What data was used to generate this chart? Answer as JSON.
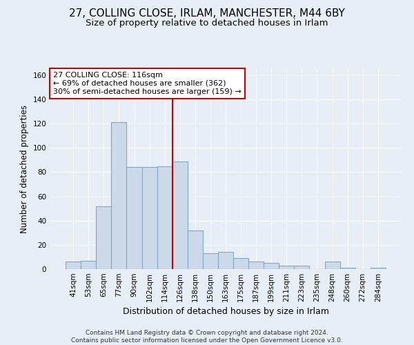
{
  "title": "27, COLLING CLOSE, IRLAM, MANCHESTER, M44 6BY",
  "subtitle": "Size of property relative to detached houses in Irlam",
  "xlabel": "Distribution of detached houses by size in Irlam",
  "ylabel": "Number of detached properties",
  "footer_line1": "Contains HM Land Registry data © Crown copyright and database right 2024.",
  "footer_line2": "Contains public sector information licensed under the Open Government Licence v3.0.",
  "bar_labels": [
    "41sqm",
    "53sqm",
    "65sqm",
    "77sqm",
    "90sqm",
    "102sqm",
    "114sqm",
    "126sqm",
    "138sqm",
    "150sqm",
    "163sqm",
    "175sqm",
    "187sqm",
    "199sqm",
    "211sqm",
    "223sqm",
    "235sqm",
    "248sqm",
    "260sqm",
    "272sqm",
    "284sqm"
  ],
  "bar_values": [
    6,
    7,
    52,
    121,
    84,
    84,
    85,
    89,
    32,
    13,
    14,
    9,
    6,
    5,
    3,
    3,
    0,
    6,
    1,
    0,
    1
  ],
  "bar_color": "#ccd9e8",
  "bar_edgecolor": "#7fa8c9",
  "ylim": [
    0,
    165
  ],
  "yticks": [
    0,
    20,
    40,
    60,
    80,
    100,
    120,
    140,
    160
  ],
  "vline_pos": 6.5,
  "vline_color": "#cc0000",
  "annotation_line1": "27 COLLING CLOSE: 116sqm",
  "annotation_line2": "← 69% of detached houses are smaller (362)",
  "annotation_line3": "30% of semi-detached houses are larger (159) →",
  "annotation_box_color": "#ffffff",
  "annotation_box_edgecolor": "#cc0000",
  "background_color": "#e8eef5",
  "plot_background": "#e8eef5",
  "grid_color": "#ffffff",
  "title_fontsize": 11,
  "subtitle_fontsize": 9.5,
  "ylabel_fontsize": 8.5,
  "xlabel_fontsize": 9,
  "annot_fontsize": 8,
  "footer_fontsize": 6.5,
  "tick_fontsize": 7.5
}
